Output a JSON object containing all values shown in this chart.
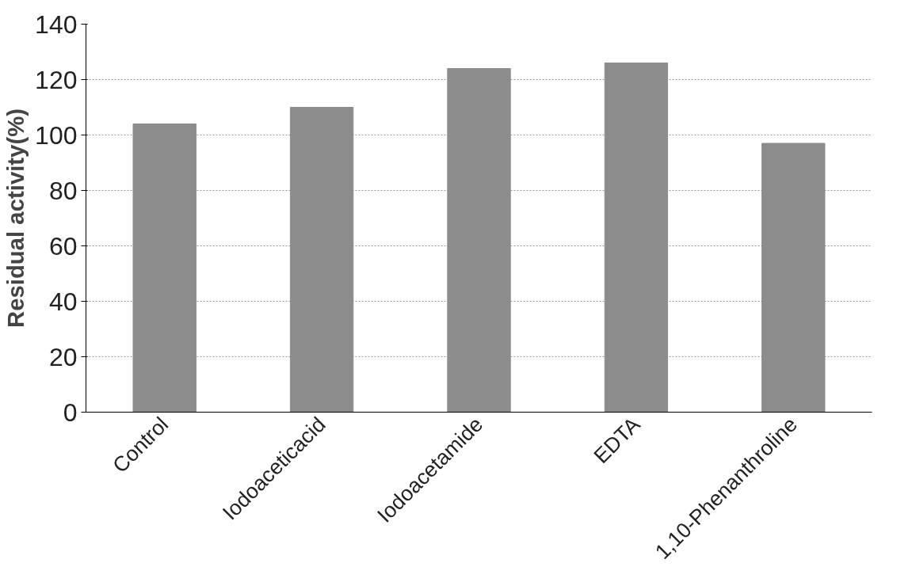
{
  "chart_data": {
    "type": "bar",
    "ylabel": "Residual activity(%)",
    "categories": [
      "Control",
      "Iodoaceticacid",
      "Iodoacetamide",
      "EDTA",
      "1,10-Phenanthroline"
    ],
    "values": [
      104,
      110,
      124,
      126,
      97
    ],
    "color": "#8c8c8c",
    "ylim": [
      0,
      140
    ],
    "yticks": [
      0,
      20,
      40,
      60,
      80,
      100,
      120,
      140
    ],
    "grid": "y"
  }
}
